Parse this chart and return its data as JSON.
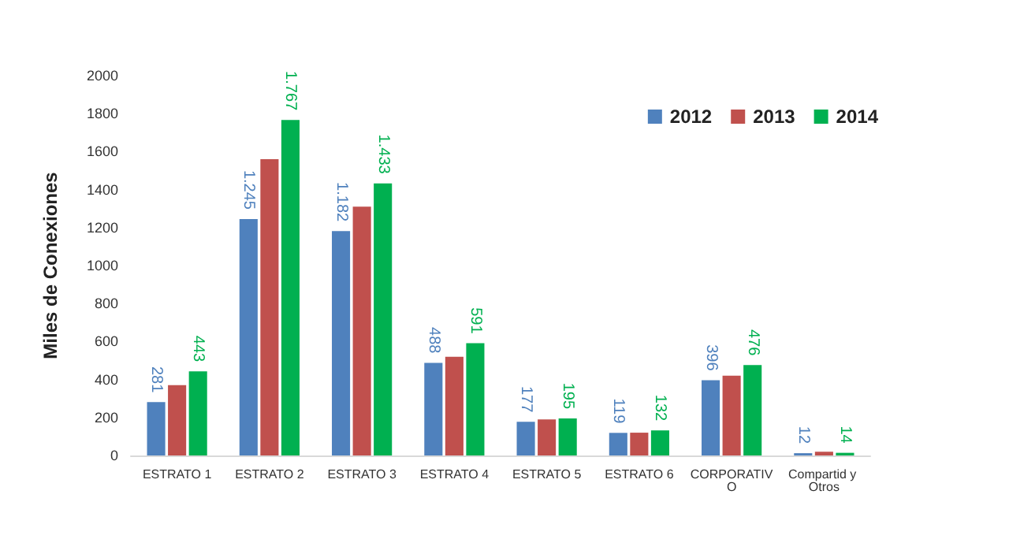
{
  "chart_data": {
    "type": "bar",
    "ylabel": "Miles de Conexiones",
    "categories": [
      "ESTRATO 1",
      "ESTRATO 2",
      "ESTRATO 3",
      "ESTRATO 4",
      "ESTRATO 5",
      "ESTRATO 6",
      "CORPORATIVO",
      "Compartid y Otros"
    ],
    "series": [
      {
        "name": "2012",
        "color": "#4f81bd",
        "values": [
          281,
          1245,
          1182,
          488,
          177,
          119,
          396,
          12
        ],
        "value_labels": [
          "281",
          "1.245",
          "1.182",
          "488",
          "177",
          "119",
          "396",
          "12"
        ]
      },
      {
        "name": "2013",
        "color": "#c0504d",
        "values": [
          370,
          1560,
          1310,
          520,
          190,
          120,
          420,
          20
        ]
      },
      {
        "name": "2014",
        "color": "#00b050",
        "values": [
          443,
          1767,
          1433,
          591,
          195,
          132,
          476,
          14
        ],
        "value_labels": [
          "443",
          "1.767",
          "1.433",
          "591",
          "195",
          "132",
          "476",
          "14"
        ]
      }
    ],
    "ylim": [
      0,
      2000
    ],
    "yticks": [
      0,
      200,
      400,
      600,
      800,
      1000,
      1200,
      1400,
      1600,
      1800,
      2000
    ],
    "grid": false,
    "legend": "top right"
  }
}
